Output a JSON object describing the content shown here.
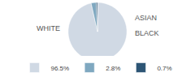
{
  "chart_data": {
    "type": "pie",
    "categories": [
      "WHITE",
      "ASIAN",
      "BLACK"
    ],
    "values": [
      96.5,
      2.8,
      0.7
    ],
    "value_labels": [
      "96.5%",
      "2.8%",
      "0.7%"
    ],
    "colors": [
      "#d0d9e4",
      "#7fa8c0",
      "#2d5575"
    ],
    "legend": "bottom"
  }
}
